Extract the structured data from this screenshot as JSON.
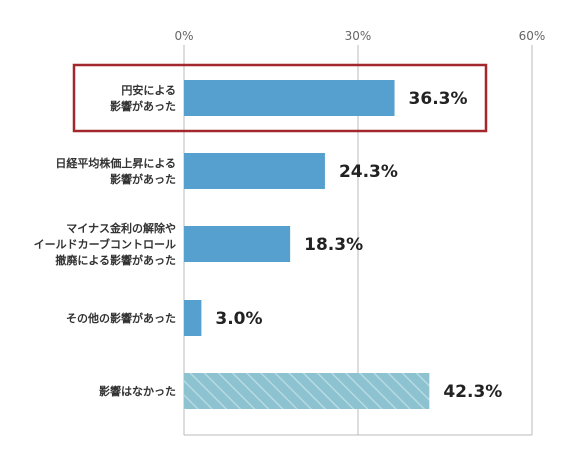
{
  "chart_data": {
    "type": "bar",
    "orientation": "horizontal",
    "categories": [
      [
        "円安による",
        "影響があった"
      ],
      [
        "日経平均株価上昇による",
        "影響があった"
      ],
      [
        "マイナス金利の解除や",
        "イールドカーブコントロール",
        "撤廃による影響があった"
      ],
      [
        "その他の影響があった"
      ],
      [
        "影響はなかった"
      ]
    ],
    "values": [
      36.3,
      24.3,
      18.3,
      3.0,
      42.3
    ],
    "value_labels": [
      "36.3%",
      "24.3%",
      "18.3%",
      "3.0%",
      "42.3%"
    ],
    "xlim": [
      0,
      60
    ],
    "x_ticks": [
      "0%",
      "30%",
      "60%"
    ],
    "grid": true,
    "highlighted_category_index": 0,
    "hatched_category_index": 4,
    "colors": {
      "bar": "#56a0cf",
      "hatched_bar": "#8dc2d0",
      "hatch_line": "#b6dae3",
      "highlight_box": "#a3282d",
      "grid": "#bbbbbb"
    }
  }
}
